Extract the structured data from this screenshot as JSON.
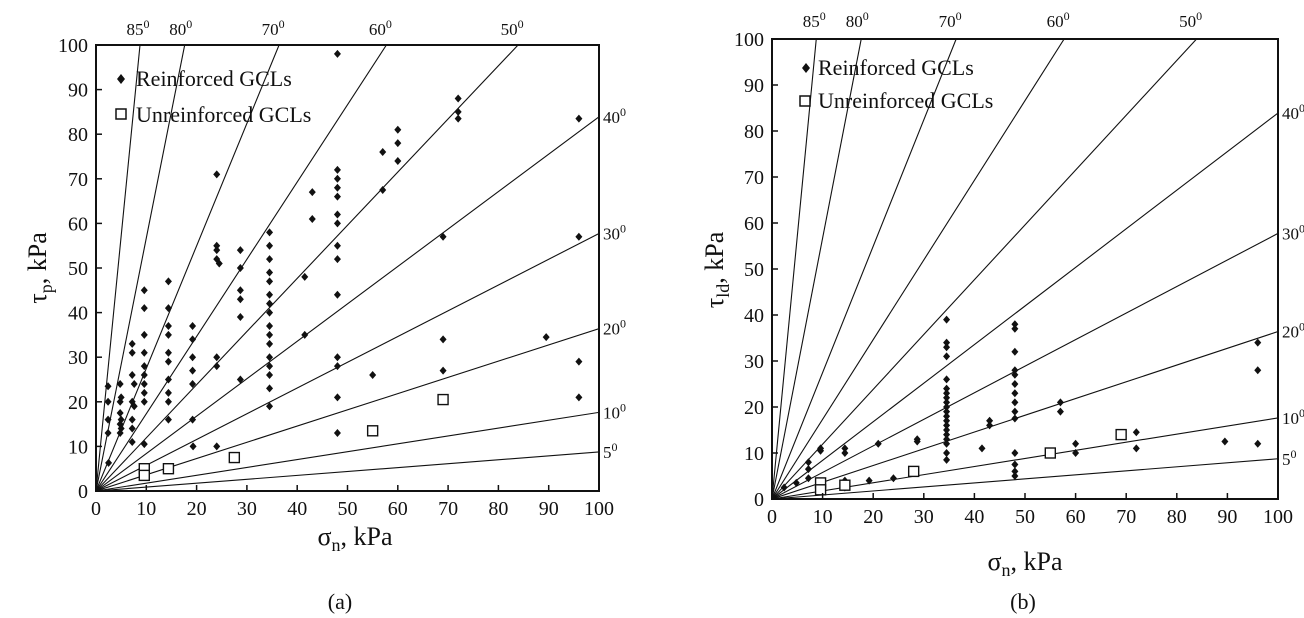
{
  "chart_data": [
    {
      "type": "scatter",
      "panel_label": "(a)",
      "ylabel_main": "τ",
      "ylabel_sub": "p",
      "ylabel_unit": ", kPa",
      "xlabel_main": "σ",
      "xlabel_sub": "n",
      "xlabel_unit": ", kPa",
      "xlim": [
        0,
        100
      ],
      "ylim": [
        0,
        100
      ],
      "xticks": [
        "0",
        "10",
        "20",
        "30",
        "40",
        "50",
        "60",
        "70",
        "80",
        "90",
        "100"
      ],
      "yticks": [
        "0",
        "10",
        "20",
        "30",
        "40",
        "50",
        "60",
        "70",
        "80",
        "90",
        "100"
      ],
      "legend_position": "top-left",
      "friction_angle_lines": [
        "85",
        "80",
        "70",
        "60",
        "50",
        "40",
        "30",
        "20",
        "10",
        "5"
      ],
      "angle_label_suffix": "0",
      "series": [
        {
          "name": "Reinforced GCLs",
          "marker": "filled-diamond",
          "color": "#111111",
          "points": [
            [
              2.4,
              23.5
            ],
            [
              2.4,
              20
            ],
            [
              2.4,
              16
            ],
            [
              2.4,
              13
            ],
            [
              2.5,
              6.3
            ],
            [
              4.8,
              24
            ],
            [
              4.8,
              20
            ],
            [
              4.8,
              17.5
            ],
            [
              4.8,
              15
            ],
            [
              4.8,
              13
            ],
            [
              5,
              21
            ],
            [
              5,
              16
            ],
            [
              5,
              14
            ],
            [
              7.2,
              33
            ],
            [
              7.2,
              31
            ],
            [
              7.2,
              26
            ],
            [
              7.2,
              20
            ],
            [
              7.2,
              16
            ],
            [
              7.2,
              14
            ],
            [
              7.2,
              11
            ],
            [
              7.6,
              24
            ],
            [
              7.6,
              19
            ],
            [
              9.6,
              45
            ],
            [
              9.6,
              41
            ],
            [
              9.6,
              35
            ],
            [
              9.6,
              31
            ],
            [
              9.6,
              28
            ],
            [
              9.6,
              26
            ],
            [
              9.6,
              24
            ],
            [
              9.6,
              22
            ],
            [
              9.6,
              20
            ],
            [
              9.6,
              10.5
            ],
            [
              14.4,
              47
            ],
            [
              14.4,
              41
            ],
            [
              14.4,
              37
            ],
            [
              14.4,
              35
            ],
            [
              14.4,
              31
            ],
            [
              14.4,
              29
            ],
            [
              14.4,
              25
            ],
            [
              14.4,
              22
            ],
            [
              14.4,
              20
            ],
            [
              14.4,
              16
            ],
            [
              19.2,
              37
            ],
            [
              19.2,
              34
            ],
            [
              19.2,
              30
            ],
            [
              19.2,
              27
            ],
            [
              19.2,
              24
            ],
            [
              19.2,
              16
            ],
            [
              19.3,
              10
            ],
            [
              24,
              71
            ],
            [
              24,
              55
            ],
            [
              24,
              54
            ],
            [
              24,
              52
            ],
            [
              24,
              30
            ],
            [
              24,
              28
            ],
            [
              24,
              10
            ],
            [
              24.5,
              51
            ],
            [
              28.7,
              54
            ],
            [
              28.7,
              50
            ],
            [
              28.7,
              45
            ],
            [
              28.7,
              43
            ],
            [
              28.7,
              39
            ],
            [
              28.7,
              25
            ],
            [
              34.5,
              58
            ],
            [
              34.5,
              55
            ],
            [
              34.5,
              52
            ],
            [
              34.5,
              49
            ],
            [
              34.5,
              47
            ],
            [
              34.5,
              44
            ],
            [
              34.5,
              42
            ],
            [
              34.5,
              40
            ],
            [
              34.5,
              37
            ],
            [
              34.5,
              35
            ],
            [
              34.5,
              33
            ],
            [
              34.5,
              30
            ],
            [
              34.5,
              28
            ],
            [
              34.5,
              26
            ],
            [
              34.5,
              23
            ],
            [
              34.5,
              19
            ],
            [
              41.5,
              48
            ],
            [
              41.5,
              35
            ],
            [
              43,
              67
            ],
            [
              43,
              61
            ],
            [
              48,
              98
            ],
            [
              48,
              72
            ],
            [
              48,
              70
            ],
            [
              48,
              68
            ],
            [
              48,
              66
            ],
            [
              48,
              62
            ],
            [
              48,
              60
            ],
            [
              48,
              55
            ],
            [
              48,
              52
            ],
            [
              48,
              44
            ],
            [
              48,
              30
            ],
            [
              48,
              28
            ],
            [
              48,
              21
            ],
            [
              48,
              13
            ],
            [
              55,
              26
            ],
            [
              57,
              76
            ],
            [
              57,
              67.5
            ],
            [
              60,
              81
            ],
            [
              60,
              78
            ],
            [
              60,
              74
            ],
            [
              69,
              57
            ],
            [
              69,
              34
            ],
            [
              69,
              27
            ],
            [
              72,
              88
            ],
            [
              72,
              85
            ],
            [
              72,
              83.5
            ],
            [
              89.5,
              34.5
            ],
            [
              96,
              83.5
            ],
            [
              96,
              57
            ],
            [
              96,
              29
            ],
            [
              96,
              21
            ]
          ]
        },
        {
          "name": "Unreinforced GCLs",
          "marker": "open-square",
          "color": "#111111",
          "points": [
            [
              9.6,
              5
            ],
            [
              9.6,
              3.5
            ],
            [
              14.4,
              5
            ],
            [
              27.5,
              7.5
            ],
            [
              55,
              13.5
            ],
            [
              69,
              20.5
            ]
          ]
        }
      ]
    },
    {
      "type": "scatter",
      "panel_label": "(b)",
      "ylabel_main": "τ",
      "ylabel_sub": "ld",
      "ylabel_unit": ", kPa",
      "xlabel_main": "σ",
      "xlabel_sub": "n",
      "xlabel_unit": ", kPa",
      "xlim": [
        0,
        100
      ],
      "ylim": [
        0,
        100
      ],
      "xticks": [
        "0",
        "10",
        "20",
        "30",
        "40",
        "50",
        "60",
        "70",
        "80",
        "90",
        "100"
      ],
      "yticks": [
        "0",
        "10",
        "20",
        "30",
        "40",
        "50",
        "60",
        "70",
        "80",
        "90",
        "100"
      ],
      "legend_position": "top-left",
      "friction_angle_lines": [
        "85",
        "80",
        "70",
        "60",
        "50",
        "40",
        "30",
        "20",
        "10",
        "5"
      ],
      "angle_label_suffix": "0",
      "series": [
        {
          "name": "Reinforced GCLs",
          "marker": "filled-diamond",
          "color": "#111111",
          "points": [
            [
              2.4,
              2.5
            ],
            [
              4.8,
              3.5
            ],
            [
              7.2,
              8
            ],
            [
              7.2,
              6.5
            ],
            [
              7.2,
              4.5
            ],
            [
              9.6,
              11
            ],
            [
              9.6,
              10.5
            ],
            [
              9.6,
              3
            ],
            [
              9.6,
              2
            ],
            [
              14.4,
              11
            ],
            [
              14.4,
              10
            ],
            [
              14.4,
              4
            ],
            [
              14.4,
              2.5
            ],
            [
              19.2,
              4
            ],
            [
              21,
              12
            ],
            [
              24,
              4.5
            ],
            [
              28.7,
              13
            ],
            [
              28.7,
              12.5
            ],
            [
              34.5,
              39
            ],
            [
              34.5,
              34
            ],
            [
              34.5,
              33
            ],
            [
              34.5,
              31
            ],
            [
              34.5,
              26
            ],
            [
              34.5,
              24
            ],
            [
              34.5,
              23
            ],
            [
              34.5,
              22
            ],
            [
              34.5,
              21
            ],
            [
              34.5,
              20
            ],
            [
              34.5,
              19
            ],
            [
              34.5,
              18
            ],
            [
              34.5,
              17
            ],
            [
              34.5,
              16
            ],
            [
              34.5,
              15
            ],
            [
              34.5,
              14
            ],
            [
              34.5,
              13
            ],
            [
              34.5,
              12
            ],
            [
              34.5,
              10
            ],
            [
              34.5,
              8.5
            ],
            [
              41.5,
              11
            ],
            [
              43,
              17
            ],
            [
              43,
              16
            ],
            [
              48,
              38
            ],
            [
              48,
              37
            ],
            [
              48,
              32
            ],
            [
              48,
              28
            ],
            [
              48,
              27
            ],
            [
              48,
              25
            ],
            [
              48,
              23
            ],
            [
              48,
              21
            ],
            [
              48,
              19
            ],
            [
              48,
              17.5
            ],
            [
              48,
              10
            ],
            [
              48,
              7.5
            ],
            [
              48,
              6
            ],
            [
              48,
              5
            ],
            [
              57,
              21
            ],
            [
              57,
              19
            ],
            [
              60,
              12
            ],
            [
              60,
              10
            ],
            [
              69,
              14
            ],
            [
              72,
              14.5
            ],
            [
              72,
              11
            ],
            [
              89.5,
              12.5
            ],
            [
              96,
              34
            ],
            [
              96,
              28
            ],
            [
              96,
              12
            ]
          ]
        },
        {
          "name": "Unreinforced GCLs",
          "marker": "open-square",
          "color": "#111111",
          "points": [
            [
              9.6,
              3.5
            ],
            [
              9.6,
              2
            ],
            [
              14.4,
              3
            ],
            [
              28,
              6
            ],
            [
              55,
              10
            ],
            [
              69,
              14
            ]
          ]
        }
      ]
    }
  ]
}
